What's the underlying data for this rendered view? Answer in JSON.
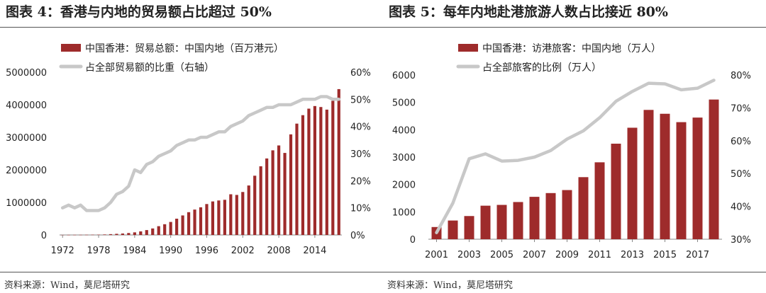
{
  "colors": {
    "bar": "#9e2b2b",
    "line": "#c8c8c8",
    "axis": "#888888",
    "text": "#222222"
  },
  "chart_data": [
    {
      "type": "bar",
      "title": "图表 4：香港与内地的贸易额占比超过 50%",
      "source": "资料来源：Wind，莫尼塔研究",
      "x": [
        1972,
        1973,
        1974,
        1975,
        1976,
        1977,
        1978,
        1979,
        1980,
        1981,
        1982,
        1983,
        1984,
        1985,
        1986,
        1987,
        1988,
        1989,
        1990,
        1991,
        1992,
        1993,
        1994,
        1995,
        1996,
        1997,
        1998,
        1999,
        2000,
        2001,
        2002,
        2003,
        2004,
        2005,
        2006,
        2007,
        2008,
        2009,
        2010,
        2011,
        2012,
        2013,
        2014,
        2015,
        2016,
        2017,
        2018
      ],
      "x_ticks": [
        1972,
        1978,
        1984,
        1990,
        1996,
        2002,
        2008,
        2014
      ],
      "y_left": {
        "ticks": [
          "0",
          "1000000",
          "2000000",
          "3000000",
          "4000000",
          "5000000"
        ],
        "range": [
          0,
          5000000
        ]
      },
      "y_right": {
        "ticks": [
          "0%",
          "10%",
          "20%",
          "30%",
          "40%",
          "50%",
          "60%"
        ],
        "range": [
          0,
          60
        ]
      },
      "legend": {
        "placement": "top"
      },
      "series": [
        {
          "name": "中国香港：贸易总额：中国内地（百万港元）",
          "kind": "bar",
          "axis": "left",
          "values": [
            2000,
            3000,
            4000,
            5000,
            6000,
            8000,
            10000,
            15000,
            25000,
            35000,
            45000,
            60000,
            80000,
            110000,
            150000,
            200000,
            270000,
            330000,
            400000,
            500000,
            600000,
            700000,
            780000,
            850000,
            950000,
            1030000,
            1060000,
            1080000,
            1250000,
            1230000,
            1320000,
            1520000,
            1820000,
            2110000,
            2350000,
            2600000,
            2750000,
            2520000,
            3090000,
            3420000,
            3680000,
            3880000,
            3960000,
            3930000,
            3850000,
            4120000,
            4480000
          ]
        },
        {
          "name": "占全部贸易额的比重（右轴）",
          "kind": "line",
          "axis": "right",
          "values": [
            10,
            11,
            10,
            11,
            9,
            9,
            9,
            10,
            12,
            15,
            16,
            18,
            24,
            23,
            26,
            27,
            29,
            30,
            31,
            33,
            34,
            35,
            35,
            36,
            36,
            37,
            38,
            38,
            40,
            41,
            42,
            44,
            45,
            46,
            47,
            47,
            48,
            48,
            48,
            49,
            50,
            50,
            50,
            51,
            51,
            50,
            50
          ]
        }
      ]
    },
    {
      "type": "bar",
      "title": "图表 5：每年内地赴港旅游人数占比接近 80%",
      "source": "资料来源：Wind，莫尼塔研究",
      "x": [
        2001,
        2002,
        2003,
        2004,
        2005,
        2006,
        2007,
        2008,
        2009,
        2010,
        2011,
        2012,
        2013,
        2014,
        2015,
        2016,
        2017,
        2018
      ],
      "x_ticks": [
        2001,
        2003,
        2005,
        2007,
        2009,
        2011,
        2013,
        2015,
        2017
      ],
      "y_left": {
        "ticks": [
          "0",
          "1000",
          "2000",
          "3000",
          "4000",
          "5000",
          "6000"
        ],
        "range": [
          0,
          6000
        ]
      },
      "y_right": {
        "ticks": [
          "30%",
          "40%",
          "50%",
          "60%",
          "70%",
          "80%"
        ],
        "range": [
          30,
          80
        ]
      },
      "legend": {
        "placement": "top"
      },
      "series": [
        {
          "name": "中国香港：访港旅客：中国内地（万人）",
          "kind": "bar",
          "axis": "left",
          "values": [
            445,
            683,
            847,
            1225,
            1254,
            1359,
            1549,
            1686,
            1796,
            2268,
            2810,
            3491,
            4074,
            4725,
            4584,
            4278,
            4445,
            5104
          ]
        },
        {
          "name": "占全部旅客的比例（万人）",
          "kind": "line",
          "axis": "right",
          "values": [
            32,
            41,
            54.5,
            56,
            53.8,
            54,
            55,
            57,
            60.5,
            63,
            67,
            72,
            75,
            77.5,
            77.3,
            75.5,
            76,
            78.4
          ]
        }
      ]
    }
  ]
}
